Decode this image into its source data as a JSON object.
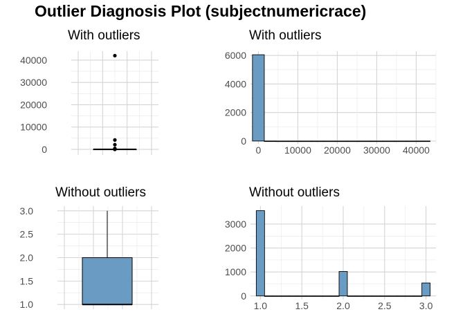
{
  "title": "Outlier Diagnosis Plot (subjectnumericrace)",
  "colors": {
    "fill": "#6a9bc3",
    "outline": "#000000",
    "grid": "#d4d4d4",
    "tick_text": "#4d4d4d"
  },
  "chart_data": [
    {
      "id": "box_with",
      "type": "box",
      "title": "With outliers",
      "ylim": [
        -2500,
        44000
      ],
      "yticks": [
        0,
        10000,
        20000,
        30000,
        40000
      ],
      "ytick_labels": [
        "0",
        "10000",
        "20000",
        "30000",
        "40000"
      ],
      "box": {
        "q1": 1,
        "median": 1,
        "q3": 2,
        "whisker_low": 1,
        "whisker_high": 3
      },
      "outliers": [
        4,
        5,
        6,
        7,
        400,
        2100,
        4200,
        42000
      ],
      "grid": true
    },
    {
      "id": "hist_with",
      "type": "bar",
      "title": "With outliers",
      "xlim": [
        -2000,
        45000
      ],
      "ylim": [
        -200,
        6300
      ],
      "xticks": [
        0,
        10000,
        20000,
        30000,
        40000
      ],
      "xtick_labels": [
        "0",
        "10000",
        "20000",
        "30000",
        "40000"
      ],
      "yticks": [
        0,
        2000,
        4000,
        6000
      ],
      "ytick_labels": [
        "0",
        "2000",
        "4000",
        "6000"
      ],
      "bin_width": 3000,
      "bins": [
        {
          "x0": -1500,
          "count": 6050
        },
        {
          "x0": 1500,
          "count": 3
        },
        {
          "x0": 4500,
          "count": 0
        },
        {
          "x0": 7500,
          "count": 0
        },
        {
          "x0": 10500,
          "count": 0
        },
        {
          "x0": 13500,
          "count": 0
        },
        {
          "x0": 16500,
          "count": 0
        },
        {
          "x0": 19500,
          "count": 0
        },
        {
          "x0": 22500,
          "count": 0
        },
        {
          "x0": 25500,
          "count": 0
        },
        {
          "x0": 28500,
          "count": 0
        },
        {
          "x0": 31500,
          "count": 0
        },
        {
          "x0": 34500,
          "count": 0
        },
        {
          "x0": 37500,
          "count": 0
        },
        {
          "x0": 40500,
          "count": 1
        }
      ],
      "grid": true
    },
    {
      "id": "box_without",
      "type": "box",
      "title": "Without outliers",
      "ylim": [
        0.9,
        3.1
      ],
      "yticks": [
        1.0,
        1.5,
        2.0,
        2.5,
        3.0
      ],
      "ytick_labels": [
        "1.0",
        "1.5",
        "2.0",
        "2.5",
        "3.0"
      ],
      "box": {
        "q1": 1,
        "median": 1,
        "q3": 2,
        "whisker_low": 1,
        "whisker_high": 3
      },
      "outliers": [],
      "grid": true
    },
    {
      "id": "hist_without",
      "type": "bar",
      "title": "Without outliers",
      "xlim": [
        0.88,
        3.12
      ],
      "ylim": [
        -150,
        3750
      ],
      "xticks": [
        1.0,
        1.5,
        2.0,
        2.5,
        3.0
      ],
      "xtick_labels": [
        "1.0",
        "1.5",
        "2.0",
        "2.5",
        "3.0"
      ],
      "yticks": [
        0,
        1000,
        2000,
        3000
      ],
      "ytick_labels": [
        "0",
        "1000",
        "2000",
        "3000"
      ],
      "bin_width": 0.1,
      "bins": [
        {
          "x0": 0.95,
          "count": 3560
        },
        {
          "x0": 1.05,
          "count": 0
        },
        {
          "x0": 1.15,
          "count": 0
        },
        {
          "x0": 1.25,
          "count": 0
        },
        {
          "x0": 1.35,
          "count": 0
        },
        {
          "x0": 1.45,
          "count": 0
        },
        {
          "x0": 1.55,
          "count": 0
        },
        {
          "x0": 1.65,
          "count": 0
        },
        {
          "x0": 1.75,
          "count": 0
        },
        {
          "x0": 1.85,
          "count": 0
        },
        {
          "x0": 1.95,
          "count": 1020
        },
        {
          "x0": 2.05,
          "count": 0
        },
        {
          "x0": 2.15,
          "count": 0
        },
        {
          "x0": 2.25,
          "count": 0
        },
        {
          "x0": 2.35,
          "count": 0
        },
        {
          "x0": 2.45,
          "count": 0
        },
        {
          "x0": 2.55,
          "count": 0
        },
        {
          "x0": 2.65,
          "count": 0
        },
        {
          "x0": 2.75,
          "count": 0
        },
        {
          "x0": 2.85,
          "count": 0
        },
        {
          "x0": 2.95,
          "count": 540
        }
      ],
      "grid": true
    }
  ]
}
